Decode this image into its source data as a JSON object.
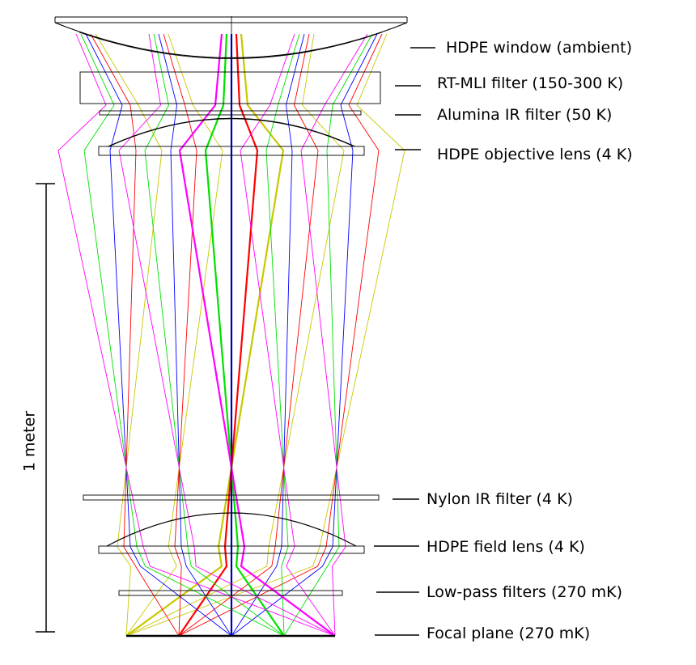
{
  "labels": {
    "window": "HDPE window (ambient)",
    "rt_mli": "RT-MLI filter (150-300 K)",
    "alumina": "Alumina IR filter (50 K)",
    "objective": "HDPE objective lens (4 K)",
    "nylon": "Nylon IR filter (4 K)",
    "field_lens": "HDPE field lens (4 K)",
    "low_pass": "Low-pass filters (270 mK)",
    "focal_plane": "Focal plane (270 mK)"
  },
  "scale_bar": {
    "label": "1 meter"
  },
  "ray_colors": [
    "#c8c800",
    "#ff0000",
    "#0000ff",
    "#00e000",
    "#ff00ff"
  ]
}
